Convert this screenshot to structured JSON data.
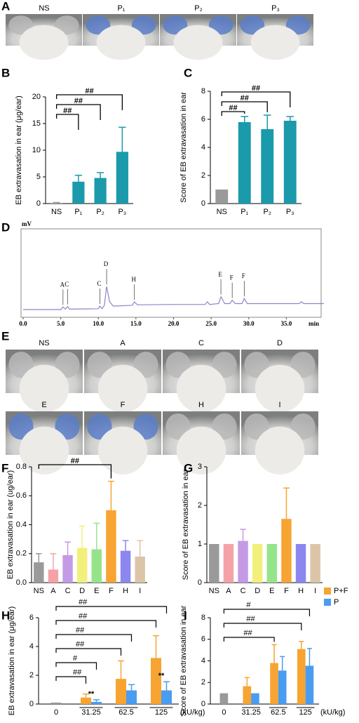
{
  "panel_a": {
    "label": "A",
    "captions": [
      "NS",
      "P₁",
      "P₂",
      "P₃"
    ]
  },
  "panel_e": {
    "label": "E",
    "captions": [
      "NS",
      "A",
      "C",
      "D",
      "E",
      "F",
      "H",
      "I"
    ]
  },
  "chart_data": [
    {
      "type": "bar",
      "panel": "B",
      "ylabel": "EB extravasation in ear (μg/ear)",
      "categories": [
        "NS",
        "P₁",
        "P₂",
        "P₃"
      ],
      "values": [
        0.1,
        4.1,
        4.8,
        9.7
      ],
      "errors": [
        0.1,
        1.2,
        1.0,
        4.6
      ],
      "colors": [
        "#9a9a9a",
        "#1a9aab",
        "#1a9aab",
        "#1a9aab"
      ],
      "ylim": [
        0,
        20
      ],
      "yticks": [
        0,
        5,
        10,
        15,
        20
      ],
      "brackets": [
        {
          "label": "##",
          "from": 0,
          "to": 3
        },
        {
          "label": "##",
          "from": 0,
          "to": 2
        },
        {
          "label": "##",
          "from": 0,
          "to": 1
        }
      ]
    },
    {
      "type": "bar",
      "panel": "C",
      "ylabel": "Score of EB extravasation in ear",
      "categories": [
        "NS",
        "P₁",
        "P₂",
        "P₃"
      ],
      "values": [
        1.0,
        5.8,
        5.3,
        5.9
      ],
      "errors": [
        0,
        0.4,
        1.0,
        0.3
      ],
      "colors": [
        "#9a9a9a",
        "#1a9aab",
        "#1a9aab",
        "#1a9aab"
      ],
      "ylim": [
        0,
        8
      ],
      "yticks": [
        0,
        2,
        4,
        6,
        8
      ],
      "brackets": [
        {
          "label": "##",
          "from": 0,
          "to": 3
        },
        {
          "label": "##",
          "from": 0,
          "to": 2
        },
        {
          "label": "##",
          "from": 0,
          "to": 1
        }
      ]
    },
    {
      "type": "line",
      "panel": "D",
      "ylabel": "mV",
      "xlabel": "min",
      "color": "#8a86c8",
      "x": [
        0,
        5,
        5.3,
        5.6,
        5.9,
        6.2,
        10,
        10.2,
        10.5,
        10.8,
        11.1,
        11.5,
        12,
        14.5,
        14.8,
        15.2,
        20,
        24.2,
        24.5,
        24.8,
        26,
        26.3,
        26.8,
        27.5,
        27.8,
        28.2,
        29.1,
        29.4,
        29.8,
        36.7,
        37,
        37.3,
        40
      ],
      "values": [
        0.9,
        0.9,
        1.2,
        0.95,
        1.25,
        0.95,
        1.0,
        1.3,
        1.0,
        1.4,
        3.6,
        1.8,
        1.3,
        1.4,
        1.8,
        1.45,
        1.5,
        1.5,
        1.8,
        1.5,
        1.6,
        2.4,
        1.6,
        1.6,
        2.0,
        1.6,
        1.6,
        2.2,
        1.6,
        1.6,
        1.8,
        1.6,
        1.6
      ],
      "xlim": [
        0,
        40
      ],
      "ylim": [
        0,
        10
      ],
      "xticks": [
        {
          "value": 0,
          "label": "0.0"
        },
        {
          "value": 5,
          "label": "5.0"
        },
        {
          "value": 10,
          "label": "10.0"
        },
        {
          "value": 15,
          "label": "15.0"
        },
        {
          "value": 20,
          "label": "20.0"
        },
        {
          "value": 25,
          "label": "25.0"
        },
        {
          "value": 30,
          "label": "30.0"
        },
        {
          "value": 35,
          "label": "35.0"
        }
      ],
      "peaks": [
        {
          "label": "A",
          "x": 5.3,
          "y": 1.2
        },
        {
          "label": "C",
          "x": 5.9,
          "y": 1.25
        },
        {
          "label": "C",
          "x": 10.2,
          "y": 1.3
        },
        {
          "label": "D",
          "x": 11.1,
          "y": 3.6
        },
        {
          "label": "H",
          "x": 14.8,
          "y": 1.8
        },
        {
          "label": "E",
          "x": 26.3,
          "y": 2.4
        },
        {
          "label": "F",
          "x": 27.8,
          "y": 2.0
        },
        {
          "label": "F",
          "x": 29.4,
          "y": 2.2
        }
      ]
    },
    {
      "type": "bar",
      "panel": "F",
      "ylabel": "EB extravasation in ear (ug/ear)",
      "categories": [
        "NS",
        "A",
        "C",
        "D",
        "E",
        "F",
        "H",
        "I"
      ],
      "values": [
        0.14,
        0.09,
        0.19,
        0.24,
        0.23,
        0.5,
        0.22,
        0.18
      ],
      "errors": [
        0.06,
        0.11,
        0.09,
        0.15,
        0.18,
        0.2,
        0.07,
        0.11
      ],
      "colors": [
        "#9a9a9a",
        "#f4a2a8",
        "#c49ae6",
        "#f2f07a",
        "#96e48a",
        "#f7a432",
        "#8c86f0",
        "#dcc4a8"
      ],
      "ylim": [
        0,
        0.8
      ],
      "yticks": [
        {
          "value": 0,
          "label": "0.0"
        },
        0.2,
        0.4,
        0.6,
        0.8
      ],
      "brackets": [
        {
          "label": "##",
          "from": 0,
          "to": 5
        }
      ]
    },
    {
      "type": "bar",
      "panel": "G",
      "ylabel": "Score of EB extravasation in ear",
      "categories": [
        "NS",
        "A",
        "C",
        "D",
        "E",
        "F",
        "H",
        "I"
      ],
      "values": [
        1,
        1,
        1.08,
        1,
        1,
        1.65,
        1,
        1
      ],
      "errors": [
        0,
        0,
        0.3,
        0,
        0,
        0.8,
        0,
        0
      ],
      "colors": [
        "#9a9a9a",
        "#f4a2a8",
        "#c49ae6",
        "#f2f07a",
        "#96e48a",
        "#f7a432",
        "#8c86f0",
        "#dcc4a8"
      ],
      "ylim": [
        0,
        3
      ],
      "yticks": [
        0,
        1,
        2,
        3
      ],
      "brackets": []
    },
    {
      "type": "grouped",
      "panel": "H",
      "ylabel": "EB extravasation in ear (μg/ear)",
      "xunit": "(kU/kg)",
      "categories": [
        "0",
        "31.25",
        "62.5",
        "125"
      ],
      "control_value": 0.1,
      "control_color": "#9a9a9a",
      "series": [
        {
          "name": "P+F",
          "color": "#f7a432",
          "values": [
            null,
            0.45,
            1.75,
            3.2
          ],
          "errors": [
            null,
            0.25,
            1.25,
            1.55
          ]
        },
        {
          "name": "P",
          "color": "#4a9cf0",
          "values": [
            null,
            0.15,
            0.95,
            0.95
          ],
          "errors": [
            null,
            0.15,
            0.4,
            0.6
          ]
        }
      ],
      "ylim": [
        0,
        6
      ],
      "yticks": [
        0,
        2,
        4,
        6
      ],
      "brackets": [
        {
          "label": "##",
          "group": 3,
          "series": 1
        },
        {
          "label": "##",
          "group": 3,
          "series": 0
        },
        {
          "label": "##",
          "group": 2,
          "series": 1
        },
        {
          "label": "##",
          "group": 2,
          "series": 0
        },
        {
          "label": "#",
          "group": 1,
          "series": 1
        },
        {
          "label": "##",
          "group": 1,
          "series": 0
        }
      ],
      "stars": [
        {
          "label": "**",
          "group": 1
        },
        {
          "label": "**",
          "group": 3
        }
      ]
    },
    {
      "type": "grouped",
      "panel": "I",
      "ylabel": "Score of EB extravasation in ear",
      "xunit": "(kU/kg)",
      "categories": [
        "0",
        "31.25",
        "62.5",
        "125"
      ],
      "control_value": 1.0,
      "control_color": "#9a9a9a",
      "series": [
        {
          "name": "P+F",
          "color": "#f7a432",
          "values": [
            null,
            1.65,
            3.8,
            5.1
          ],
          "errors": [
            null,
            0.8,
            1.7,
            0.7
          ]
        },
        {
          "name": "P",
          "color": "#4a9cf0",
          "values": [
            null,
            1.0,
            3.1,
            3.55
          ],
          "errors": [
            null,
            0,
            1.3,
            1.6
          ]
        }
      ],
      "ylim": [
        0,
        8
      ],
      "yticks": [
        0,
        2,
        4,
        6,
        8
      ],
      "brackets": [
        {
          "label": "#",
          "group": 3,
          "series": 1
        },
        {
          "label": "##",
          "group": 3,
          "series": 0
        },
        {
          "label": "##",
          "group": 2,
          "series": 0
        }
      ],
      "legend": "top-right"
    }
  ]
}
